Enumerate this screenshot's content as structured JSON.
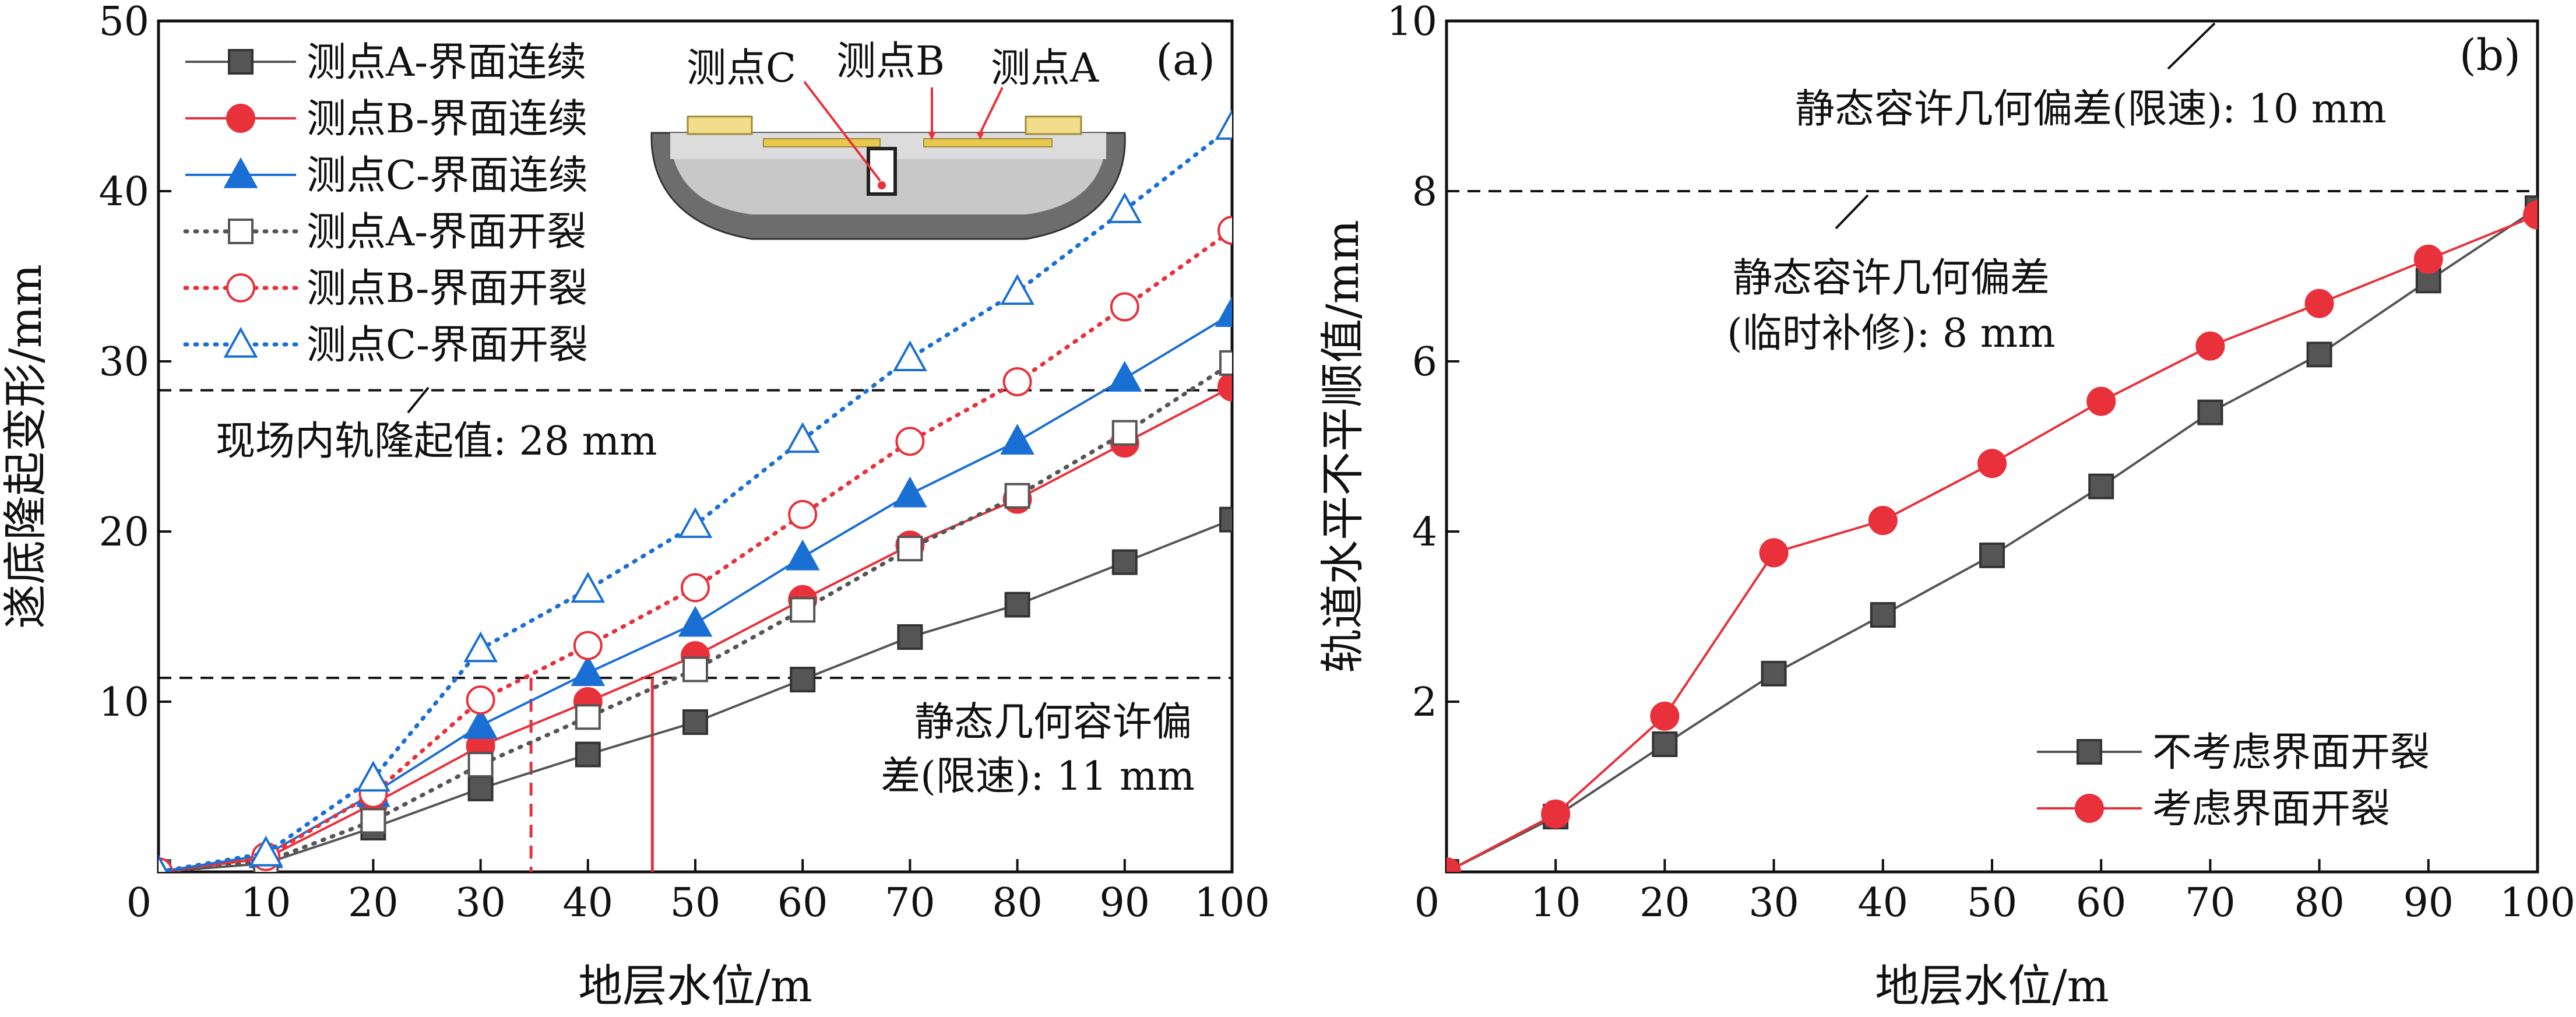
{
  "chart_data": [
    {
      "type": "line",
      "panel_label": "(a)",
      "xlabel": "地层水位/m",
      "ylabel": "遂底隆起变形/mm",
      "xlim": [
        0,
        100
      ],
      "ylim": [
        0,
        50
      ],
      "x_ticks": [
        0,
        10,
        20,
        30,
        40,
        50,
        60,
        70,
        80,
        90,
        100
      ],
      "y_ticks": [
        0,
        10,
        20,
        30,
        40,
        50
      ],
      "x": [
        0,
        10,
        20,
        30,
        40,
        50,
        60,
        70,
        80,
        90,
        100
      ],
      "series": [
        {
          "name": "测点A-界面连续",
          "marker": "square",
          "filled": true,
          "line": "solid",
          "color": "#555555",
          "values": [
            0,
            0.5,
            2.6,
            4.9,
            6.9,
            8.8,
            11.3,
            13.8,
            15.7,
            18.2,
            20.7
          ]
        },
        {
          "name": "测点B-界面连续",
          "marker": "circle",
          "filled": true,
          "line": "solid",
          "color": "#e8313a",
          "values": [
            0,
            0.8,
            4.0,
            7.4,
            10.0,
            12.7,
            16.0,
            19.2,
            21.9,
            25.2,
            28.5
          ]
        },
        {
          "name": "测点C-界面连续",
          "marker": "triangle",
          "filled": true,
          "line": "solid",
          "color": "#1a6fd4",
          "values": [
            0,
            1.0,
            4.6,
            8.6,
            11.7,
            14.6,
            18.5,
            22.2,
            25.3,
            29.0,
            32.8
          ]
        },
        {
          "name": "测点A-界面开裂",
          "marker": "square",
          "filled": false,
          "line": "dotted",
          "color": "#555555",
          "values": [
            0,
            0.6,
            3.0,
            6.3,
            9.1,
            11.9,
            15.4,
            19.0,
            22.1,
            25.8,
            29.9
          ]
        },
        {
          "name": "测点B-界面开裂",
          "marker": "circle",
          "filled": false,
          "line": "dotted",
          "color": "#e8313a",
          "values": [
            0,
            0.9,
            4.6,
            10.1,
            13.3,
            16.7,
            21.0,
            25.3,
            28.8,
            33.2,
            37.7
          ]
        },
        {
          "name": "测点C-界面开裂",
          "marker": "triangle",
          "filled": false,
          "line": "dotted",
          "color": "#1a6fd4",
          "values": [
            0,
            1.1,
            5.5,
            13.1,
            16.6,
            20.4,
            25.4,
            30.2,
            34.1,
            38.9,
            43.8
          ]
        }
      ],
      "reference_lines": [
        {
          "value": 28.3,
          "label": "现场内轨隆起值: 28 mm"
        },
        {
          "value": 11.4,
          "label_line1": "静态几何容许偏",
          "label_line2": "差(限速): 11 mm"
        }
      ],
      "crossings": [
        {
          "x": 34.7,
          "style": "dashed",
          "color": "#e8313a"
        },
        {
          "x": 46.0,
          "style": "solid",
          "color": "#e8313a"
        }
      ],
      "inset_labels": [
        "测点C",
        "测点B",
        "测点A"
      ]
    },
    {
      "type": "line",
      "panel_label": "(b)",
      "xlabel": "地层水位/m",
      "ylabel": "轨道水平不平顺值/mm",
      "xlim": [
        0,
        100
      ],
      "ylim": [
        0,
        10
      ],
      "x_ticks": [
        0,
        10,
        20,
        30,
        40,
        50,
        60,
        70,
        80,
        90,
        100
      ],
      "y_ticks": [
        0,
        2,
        4,
        6,
        8,
        10
      ],
      "x": [
        0,
        10,
        20,
        30,
        40,
        50,
        60,
        70,
        80,
        90,
        100
      ],
      "series": [
        {
          "name": "不考虑界面开裂",
          "marker": "square",
          "filled": true,
          "line": "solid",
          "color": "#555555",
          "values": [
            0,
            0.65,
            1.5,
            2.33,
            3.02,
            3.72,
            4.53,
            5.4,
            6.08,
            6.95,
            7.8
          ]
        },
        {
          "name": "考虑界面开裂",
          "marker": "circle",
          "filled": true,
          "line": "solid",
          "color": "#e8313a",
          "values": [
            0,
            0.68,
            1.83,
            3.75,
            4.13,
            4.8,
            5.53,
            6.18,
            6.68,
            7.2,
            7.72
          ]
        }
      ],
      "reference_lines": [
        {
          "value": 8,
          "label_line1": "静态容许几何偏差",
          "label_line2": "(临时补修): 8 mm"
        }
      ],
      "annotations": [
        {
          "label": "静态容许几何偏差(限速): 10 mm"
        }
      ]
    }
  ]
}
